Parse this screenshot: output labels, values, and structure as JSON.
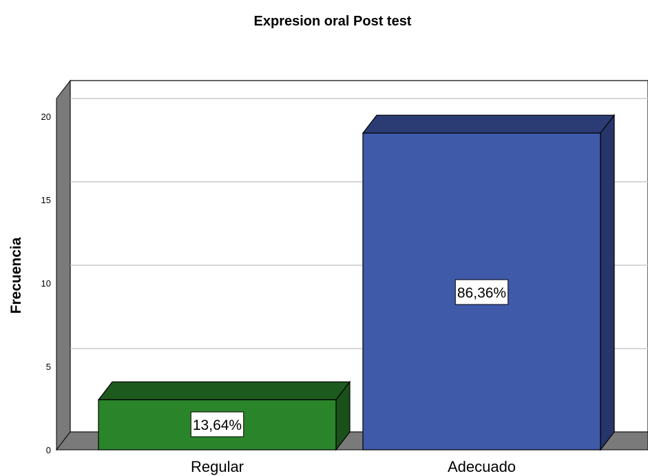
{
  "chart_data": {
    "type": "bar",
    "title": "Expresion oral Post test",
    "xlabel": "",
    "ylabel": "Frecuencia",
    "categories": [
      "Regular",
      "Adecuado"
    ],
    "values": [
      3,
      19
    ],
    "data_labels": [
      "13,64%",
      "86,36%"
    ],
    "ylim": [
      0,
      22
    ],
    "yticks": [
      0,
      5,
      10,
      15,
      20
    ],
    "grid": true,
    "style": "3d",
    "colors": {
      "Regular": "#2a852a",
      "Adecuado": "#3f5aa8",
      "floor": "#7a7a7a",
      "gridline": "#c8c8c8"
    }
  }
}
